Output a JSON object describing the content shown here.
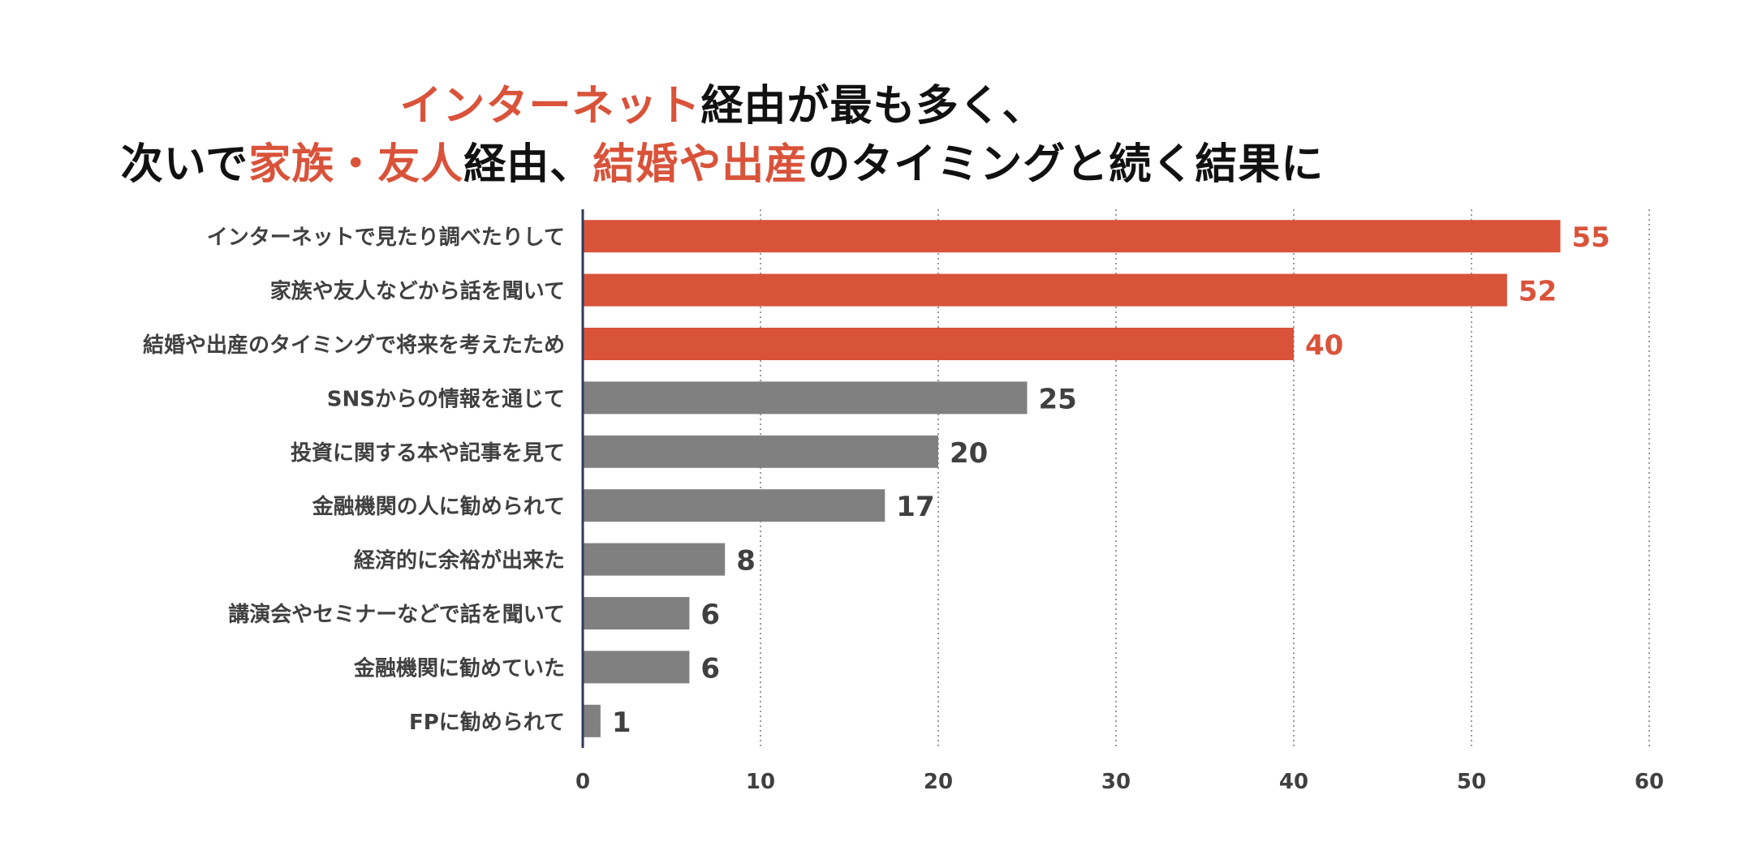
{
  "title": {
    "line1": [
      {
        "text": "インターネット",
        "highlight": true
      },
      {
        "text": "経由が最も多く、",
        "highlight": false
      }
    ],
    "line2": [
      {
        "text": "次いで",
        "highlight": false
      },
      {
        "text": "家族・友人",
        "highlight": true
      },
      {
        "text": "経由、",
        "highlight": false
      },
      {
        "text": "結婚や出産",
        "highlight": true
      },
      {
        "text": "のタイミングと続く結果に",
        "highlight": false
      }
    ]
  },
  "colors": {
    "highlight": "#D9533A",
    "title_text": "#111111",
    "bar_gray": "#808080",
    "label_text": "#404040",
    "axis": "#2F3A5A",
    "grid": "#9A9A9A"
  },
  "chart_data": {
    "type": "bar",
    "orientation": "horizontal",
    "categories": [
      "インターネットで見たり調べたりして",
      "家族や友人などから話を聞いて",
      "結婚や出産のタイミングで将来を考えたため",
      "SNSからの情報を通じて",
      "投資に関する本や記事を見て",
      "金融機関の人に勧められて",
      "経済的に余裕が出来た",
      "講演会やセミナーなどで話を聞いて",
      "金融機関に勧めていた",
      "FPに勧められて"
    ],
    "values": [
      55,
      52,
      40,
      25,
      20,
      17,
      8,
      6,
      6,
      1
    ],
    "highlighted": [
      true,
      true,
      true,
      false,
      false,
      false,
      false,
      false,
      false,
      false
    ],
    "xlim": [
      0,
      60
    ],
    "xticks": [
      0,
      10,
      20,
      30,
      40,
      50,
      60
    ],
    "grid": "vertical dotted",
    "legend": "none"
  }
}
